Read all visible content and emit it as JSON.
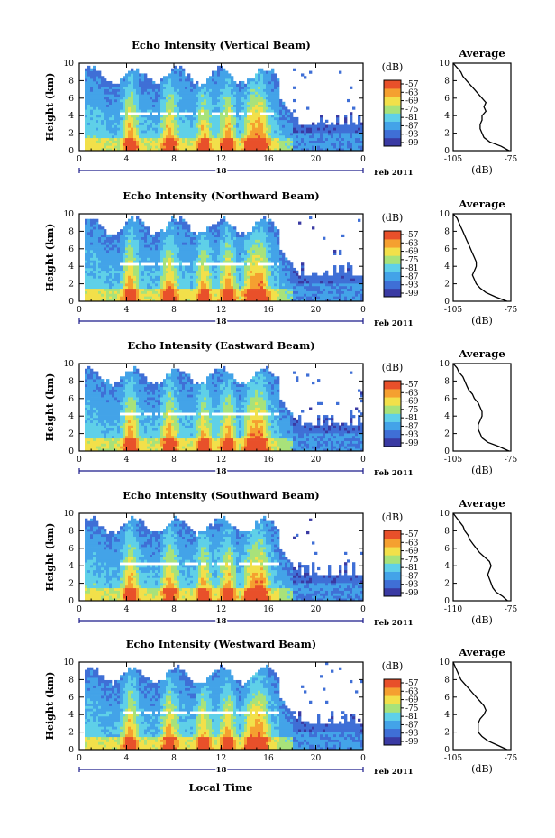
{
  "shared": {
    "xlabel": "Local Time",
    "date_day": "18",
    "date_label": "Feb 2011",
    "ylabel": "Height (km)",
    "colorbar_unit": "(dB)",
    "colorbar_ticks": [
      "-57",
      "-63",
      "-69",
      "-75",
      "-81",
      "-87",
      "-93",
      "-99"
    ],
    "avg_title": "Average",
    "avg_xlabel": "(dB)"
  },
  "chart_data": [
    {
      "type": "heatmap",
      "title": "Echo Intensity (Vertical Beam)",
      "x_ticks": [
        "0",
        "4",
        "8",
        "12",
        "16",
        "20",
        "0"
      ],
      "y_ticks": [
        "0",
        "2",
        "4",
        "6",
        "8",
        "10"
      ],
      "xlim": [
        0,
        24
      ],
      "ylim": [
        0,
        10
      ],
      "color_range_db": [
        -99,
        -57
      ],
      "colormap": [
        "#3a3aa3",
        "#3f6fd6",
        "#43a3e8",
        "#5fd0e8",
        "#a8e27a",
        "#f2e04a",
        "#f5a030",
        "#e8502a"
      ],
      "average_profile": {
        "title": "Average",
        "xlim": [
          -105,
          -75
        ],
        "x_ticks": [
          "-105",
          "-75"
        ],
        "y_ticks": [
          "0",
          "2",
          "4",
          "6",
          "8",
          "10"
        ],
        "height_km": [
          0,
          0.5,
          1,
          1.5,
          2,
          2.5,
          3,
          3.5,
          4,
          4.5,
          5,
          5.5,
          6,
          6.5,
          7,
          7.5,
          8,
          8.5,
          9,
          9.5,
          10
        ],
        "db": [
          -76,
          -80,
          -86,
          -89,
          -90,
          -91,
          -91,
          -90,
          -90,
          -88,
          -89,
          -88,
          -90,
          -92,
          -94,
          -96,
          -98,
          -100,
          -101,
          -103,
          -105
        ]
      }
    },
    {
      "type": "heatmap",
      "title": "Echo Intensity (Northward Beam)",
      "x_ticks": [
        "0",
        "4",
        "8",
        "12",
        "16",
        "20",
        "0"
      ],
      "y_ticks": [
        "0",
        "2",
        "4",
        "6",
        "8",
        "10"
      ],
      "xlim": [
        0,
        24
      ],
      "ylim": [
        0,
        10
      ],
      "color_range_db": [
        -99,
        -57
      ],
      "colormap": [
        "#3a3aa3",
        "#3f6fd6",
        "#43a3e8",
        "#5fd0e8",
        "#a8e27a",
        "#f2e04a",
        "#f5a030",
        "#e8502a"
      ],
      "average_profile": {
        "title": "Average",
        "xlim": [
          -105,
          -75
        ],
        "x_ticks": [
          "-105",
          "-75"
        ],
        "y_ticks": [
          "0",
          "2",
          "4",
          "6",
          "8",
          "10"
        ],
        "height_km": [
          0,
          0.5,
          1,
          1.5,
          2,
          2.5,
          3,
          3.5,
          4,
          4.5,
          5,
          5.5,
          6,
          6.5,
          7,
          7.5,
          8,
          8.5,
          9,
          9.5,
          10
        ],
        "db": [
          -77,
          -83,
          -88,
          -91,
          -93,
          -94,
          -95,
          -94,
          -93,
          -93,
          -94,
          -95,
          -96,
          -97,
          -98,
          -99,
          -100,
          -101,
          -102,
          -103,
          -105
        ]
      }
    },
    {
      "type": "heatmap",
      "title": "Echo Intensity (Eastward Beam)",
      "x_ticks": [
        "0",
        "4",
        "8",
        "12",
        "16",
        "20",
        "0"
      ],
      "y_ticks": [
        "0",
        "2",
        "4",
        "6",
        "8",
        "10"
      ],
      "xlim": [
        0,
        24
      ],
      "ylim": [
        0,
        10
      ],
      "color_range_db": [
        -99,
        -57
      ],
      "colormap": [
        "#3a3aa3",
        "#3f6fd6",
        "#43a3e8",
        "#5fd0e8",
        "#a8e27a",
        "#f2e04a",
        "#f5a030",
        "#e8502a"
      ],
      "average_profile": {
        "title": "Average",
        "xlim": [
          -105,
          -75
        ],
        "x_ticks": [
          "-105",
          "-75"
        ],
        "y_ticks": [
          "0",
          "2",
          "4",
          "6",
          "8",
          "10"
        ],
        "height_km": [
          0,
          0.5,
          1,
          1.5,
          2,
          2.5,
          3,
          3.5,
          4,
          4.5,
          5,
          5.5,
          6,
          6.5,
          7,
          7.5,
          8,
          8.5,
          9,
          9.5,
          10
        ],
        "db": [
          -76,
          -81,
          -87,
          -90,
          -91,
          -92,
          -92,
          -91,
          -90,
          -90,
          -91,
          -92,
          -94,
          -95,
          -97,
          -98,
          -99,
          -100,
          -102,
          -103,
          -105
        ]
      }
    },
    {
      "type": "heatmap",
      "title": "Echo Intensity (Southward Beam)",
      "x_ticks": [
        "0",
        "4",
        "8",
        "12",
        "16",
        "20",
        "0"
      ],
      "y_ticks": [
        "0",
        "2",
        "4",
        "6",
        "8",
        "10"
      ],
      "xlim": [
        0,
        24
      ],
      "ylim": [
        0,
        10
      ],
      "color_range_db": [
        -99,
        -57
      ],
      "colormap": [
        "#3a3aa3",
        "#3f6fd6",
        "#43a3e8",
        "#5fd0e8",
        "#a8e27a",
        "#f2e04a",
        "#f5a030",
        "#e8502a"
      ],
      "average_profile": {
        "title": "Average",
        "xlim": [
          -110,
          -75
        ],
        "x_ticks": [
          "-110",
          "-75"
        ],
        "y_ticks": [
          "0",
          "2",
          "4",
          "6",
          "8",
          "10"
        ],
        "height_km": [
          0,
          0.5,
          1,
          1.5,
          2,
          2.5,
          3,
          3.5,
          4,
          4.5,
          5,
          5.5,
          6,
          6.5,
          7,
          7.5,
          8,
          8.5,
          9,
          9.5,
          10
        ],
        "db": [
          -77,
          -80,
          -84,
          -86,
          -87,
          -88,
          -89,
          -88,
          -87,
          -88,
          -91,
          -94,
          -96,
          -98,
          -100,
          -101,
          -103,
          -104,
          -106,
          -108,
          -110
        ]
      }
    },
    {
      "type": "heatmap",
      "title": "Echo Intensity (Westward Beam)",
      "x_ticks": [
        "0",
        "4",
        "8",
        "12",
        "16",
        "20",
        "0"
      ],
      "y_ticks": [
        "0",
        "2",
        "4",
        "6",
        "8",
        "10"
      ],
      "xlim": [
        0,
        24
      ],
      "ylim": [
        0,
        10
      ],
      "color_range_db": [
        -99,
        -57
      ],
      "colormap": [
        "#3a3aa3",
        "#3f6fd6",
        "#43a3e8",
        "#5fd0e8",
        "#a8e27a",
        "#f2e04a",
        "#f5a030",
        "#e8502a"
      ],
      "average_profile": {
        "title": "Average",
        "xlim": [
          -105,
          -75
        ],
        "x_ticks": [
          "-105",
          "-75"
        ],
        "y_ticks": [
          "0",
          "2",
          "4",
          "6",
          "8",
          "10"
        ],
        "height_km": [
          0,
          0.5,
          1,
          1.5,
          2,
          2.5,
          3,
          3.5,
          4,
          4.5,
          5,
          5.5,
          6,
          6.5,
          7,
          7.5,
          8,
          8.5,
          9,
          9.5,
          10
        ],
        "db": [
          -77,
          -82,
          -87,
          -90,
          -92,
          -92,
          -92,
          -91,
          -89,
          -88,
          -89,
          -91,
          -93,
          -95,
          -97,
          -99,
          -101,
          -102,
          -103,
          -104,
          -105
        ]
      }
    }
  ]
}
